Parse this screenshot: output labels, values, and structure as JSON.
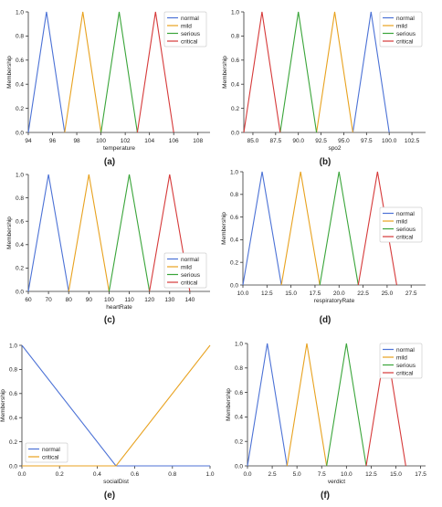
{
  "figure": {
    "name": "fuzzy-membership-functions"
  },
  "chart_data": [
    {
      "type": "line",
      "panel_label": "(a)",
      "xlabel": "temperature",
      "ylabel": "Membership",
      "xlim": [
        94,
        109
      ],
      "ylim": [
        0,
        1
      ],
      "xticks": [
        94,
        96,
        98,
        100,
        102,
        104,
        106,
        108
      ],
      "xtick_labels": [
        "94",
        "96",
        "98",
        "100",
        "102",
        "104",
        "106",
        "108"
      ],
      "yticks": [
        0,
        0.2,
        0.4,
        0.6,
        0.8,
        1.0
      ],
      "ytick_labels": [
        "0.0",
        "0.2",
        "0.4",
        "0.6",
        "0.8",
        "1.0"
      ],
      "legend_position": "top-right",
      "series": [
        {
          "name": "normal",
          "color": "#4c72d6",
          "points": [
            [
              94,
              0
            ],
            [
              95.5,
              1
            ],
            [
              97,
              0
            ]
          ]
        },
        {
          "name": "mild",
          "color": "#e8a21f",
          "points": [
            [
              97,
              0
            ],
            [
              98.5,
              1
            ],
            [
              100,
              0
            ]
          ]
        },
        {
          "name": "serious",
          "color": "#3aa53a",
          "points": [
            [
              100,
              0
            ],
            [
              101.5,
              1
            ],
            [
              103,
              0
            ]
          ]
        },
        {
          "name": "critical",
          "color": "#d63a3a",
          "points": [
            [
              103,
              0
            ],
            [
              104.5,
              1
            ],
            [
              106,
              0
            ]
          ]
        }
      ]
    },
    {
      "type": "line",
      "panel_label": "(b)",
      "xlabel": "spo2",
      "ylabel": "Membership",
      "xlim": [
        84,
        104
      ],
      "ylim": [
        0,
        1
      ],
      "xticks": [
        85,
        87.5,
        90,
        92.5,
        95,
        97.5,
        100,
        102.5
      ],
      "xtick_labels": [
        "85.0",
        "87.5",
        "90.0",
        "92.5",
        "95.0",
        "97.5",
        "100.0",
        "102.5"
      ],
      "yticks": [
        0,
        0.2,
        0.4,
        0.6,
        0.8,
        1.0
      ],
      "ytick_labels": [
        "0.0",
        "0.2",
        "0.4",
        "0.6",
        "0.8",
        "1.0"
      ],
      "legend_position": "top-right",
      "series": [
        {
          "name": "normal",
          "color": "#4c72d6",
          "points": [
            [
              96,
              0
            ],
            [
              98,
              1
            ],
            [
              100,
              0
            ]
          ]
        },
        {
          "name": "mild",
          "color": "#e8a21f",
          "points": [
            [
              92,
              0
            ],
            [
              94,
              1
            ],
            [
              96,
              0
            ]
          ]
        },
        {
          "name": "serious",
          "color": "#3aa53a",
          "points": [
            [
              88,
              0
            ],
            [
              90,
              1
            ],
            [
              92,
              0
            ]
          ]
        },
        {
          "name": "critical",
          "color": "#d63a3a",
          "points": [
            [
              84,
              0
            ],
            [
              86,
              1
            ],
            [
              88,
              0
            ]
          ]
        }
      ]
    },
    {
      "type": "line",
      "panel_label": "(c)",
      "xlabel": "heartRate",
      "ylabel": "Membership",
      "xlim": [
        60,
        150
      ],
      "ylim": [
        0,
        1
      ],
      "xticks": [
        60,
        70,
        80,
        90,
        100,
        110,
        120,
        130,
        140
      ],
      "xtick_labels": [
        "60",
        "70",
        "80",
        "90",
        "100",
        "110",
        "120",
        "130",
        "140"
      ],
      "yticks": [
        0,
        0.2,
        0.4,
        0.6,
        0.8,
        1.0
      ],
      "ytick_labels": [
        "0.0",
        "0.2",
        "0.4",
        "0.6",
        "0.8",
        "1.0"
      ],
      "legend_position": "bottom-right",
      "series": [
        {
          "name": "normal",
          "color": "#4c72d6",
          "points": [
            [
              60,
              0
            ],
            [
              70,
              1
            ],
            [
              80,
              0
            ]
          ]
        },
        {
          "name": "mild",
          "color": "#e8a21f",
          "points": [
            [
              80,
              0
            ],
            [
              90,
              1
            ],
            [
              100,
              0
            ]
          ]
        },
        {
          "name": "serious",
          "color": "#3aa53a",
          "points": [
            [
              100,
              0
            ],
            [
              110,
              1
            ],
            [
              120,
              0
            ]
          ]
        },
        {
          "name": "critical",
          "color": "#d63a3a",
          "points": [
            [
              120,
              0
            ],
            [
              130,
              1
            ],
            [
              140,
              0
            ]
          ]
        }
      ]
    },
    {
      "type": "line",
      "panel_label": "(d)",
      "xlabel": "respiratoryRate",
      "ylabel": "Membership",
      "xlim": [
        10,
        29
      ],
      "ylim": [
        0,
        1
      ],
      "xticks": [
        10,
        12.5,
        15,
        17.5,
        20,
        22.5,
        25,
        27.5
      ],
      "xtick_labels": [
        "10.0",
        "12.5",
        "15.0",
        "17.5",
        "20.0",
        "22.5",
        "25.0",
        "27.5"
      ],
      "yticks": [
        0,
        0.2,
        0.4,
        0.6,
        0.8,
        1.0
      ],
      "ytick_labels": [
        "0.0",
        "0.2",
        "0.4",
        "0.6",
        "0.8",
        "1.0"
      ],
      "legend_position": "right",
      "series": [
        {
          "name": "normal",
          "color": "#4c72d6",
          "points": [
            [
              10,
              0
            ],
            [
              12,
              1
            ],
            [
              14,
              0
            ]
          ]
        },
        {
          "name": "mild",
          "color": "#e8a21f",
          "points": [
            [
              14,
              0
            ],
            [
              16,
              1
            ],
            [
              18,
              0
            ]
          ]
        },
        {
          "name": "serious",
          "color": "#3aa53a",
          "points": [
            [
              18,
              0
            ],
            [
              20,
              1
            ],
            [
              22,
              0
            ]
          ]
        },
        {
          "name": "critical",
          "color": "#d63a3a",
          "points": [
            [
              22,
              0
            ],
            [
              24,
              1
            ],
            [
              26,
              0
            ]
          ]
        }
      ]
    },
    {
      "type": "line",
      "panel_label": "(e)",
      "xlabel": "socialDist",
      "ylabel": "Membership",
      "xlim": [
        0,
        1
      ],
      "ylim": [
        0,
        1
      ],
      "xticks": [
        0,
        0.2,
        0.4,
        0.6,
        0.8,
        1.0
      ],
      "xtick_labels": [
        "0.0",
        "0.2",
        "0.4",
        "0.6",
        "0.8",
        "1.0"
      ],
      "yticks": [
        0,
        0.2,
        0.4,
        0.6,
        0.8,
        1.0
      ],
      "ytick_labels": [
        "0.0",
        "0.2",
        "0.4",
        "0.6",
        "0.8",
        "1.0"
      ],
      "legend_position": "bottom-left",
      "series": [
        {
          "name": "normal",
          "color": "#4c72d6",
          "points": [
            [
              0,
              1
            ],
            [
              0.5,
              0
            ],
            [
              1,
              0
            ]
          ]
        },
        {
          "name": "critical",
          "color": "#e8a21f",
          "points": [
            [
              0,
              0
            ],
            [
              0.5,
              0
            ],
            [
              1,
              1
            ]
          ]
        }
      ]
    },
    {
      "type": "line",
      "panel_label": "(f)",
      "xlabel": "verdict",
      "ylabel": "Membership",
      "xlim": [
        0,
        18
      ],
      "ylim": [
        0,
        1
      ],
      "xticks": [
        0,
        2.5,
        5,
        7.5,
        10,
        12.5,
        15,
        17.5
      ],
      "xtick_labels": [
        "0.0",
        "2.5",
        "5.0",
        "7.5",
        "10.0",
        "12.5",
        "15.0",
        "17.5"
      ],
      "yticks": [
        0,
        0.2,
        0.4,
        0.6,
        0.8,
        1.0
      ],
      "ytick_labels": [
        "0.0",
        "0.2",
        "0.4",
        "0.6",
        "0.8",
        "1.0"
      ],
      "legend_position": "top-right",
      "series": [
        {
          "name": "normal",
          "color": "#4c72d6",
          "points": [
            [
              0,
              0
            ],
            [
              2,
              1
            ],
            [
              4,
              0
            ]
          ]
        },
        {
          "name": "mild",
          "color": "#e8a21f",
          "points": [
            [
              4,
              0
            ],
            [
              6,
              1
            ],
            [
              8,
              0
            ]
          ]
        },
        {
          "name": "serious",
          "color": "#3aa53a",
          "points": [
            [
              8,
              0
            ],
            [
              10,
              1
            ],
            [
              12,
              0
            ]
          ]
        },
        {
          "name": "critical",
          "color": "#d63a3a",
          "points": [
            [
              12,
              0
            ],
            [
              14,
              1
            ],
            [
              16,
              0
            ]
          ]
        }
      ]
    }
  ]
}
